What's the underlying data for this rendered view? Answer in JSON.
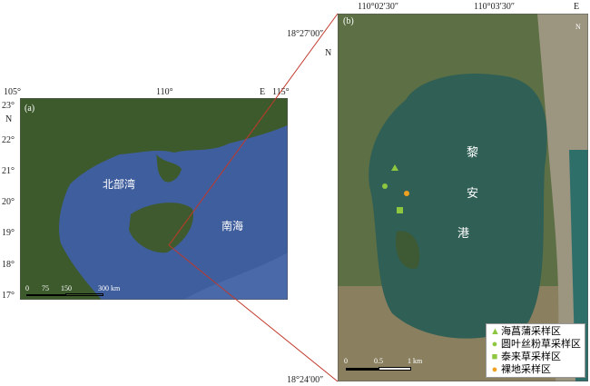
{
  "panel_a": {
    "label": "(a)",
    "lon_ticks": [
      "105°",
      "110°",
      "115°"
    ],
    "lon_suffix": "E",
    "lat_ticks": [
      "23°",
      "22°",
      "21°",
      "20°",
      "19°",
      "18°",
      "17°"
    ],
    "lat_suffix": "N",
    "places": {
      "gulf": "北部湾",
      "sea": "南海"
    },
    "scale_bar": {
      "ticks": [
        "0",
        "75",
        "150"
      ],
      "end": "300 km"
    }
  },
  "panel_b": {
    "label": "(b)",
    "lon_ticks": [
      "110°02′30″",
      "110°03′30″"
    ],
    "lon_suffix": "E",
    "lat_ticks": [
      "18°27′00″",
      "18°24′00″"
    ],
    "lat_suffix": "N",
    "lagoon_name": [
      "黎",
      "安",
      "港"
    ],
    "north_arrow": "N",
    "scale_bar": {
      "ticks": [
        "0",
        "0.5"
      ],
      "end": "1 km"
    },
    "legend": [
      {
        "symbol": "triangle",
        "color": "#8dc63f",
        "label": "海菖蒲采样区"
      },
      {
        "symbol": "circle",
        "color": "#8dc63f",
        "label": "圆叶丝粉草采样区"
      },
      {
        "symbol": "square",
        "color": "#8dc63f",
        "label": "泰来草采样区"
      },
      {
        "symbol": "circle",
        "color": "#f0a020",
        "label": "裸地采样区"
      }
    ]
  },
  "colors": {
    "connector": "#c0392b",
    "sea": "#3f5e9e",
    "land": "#3f5a2e",
    "lagoon": "#2f5f55"
  }
}
